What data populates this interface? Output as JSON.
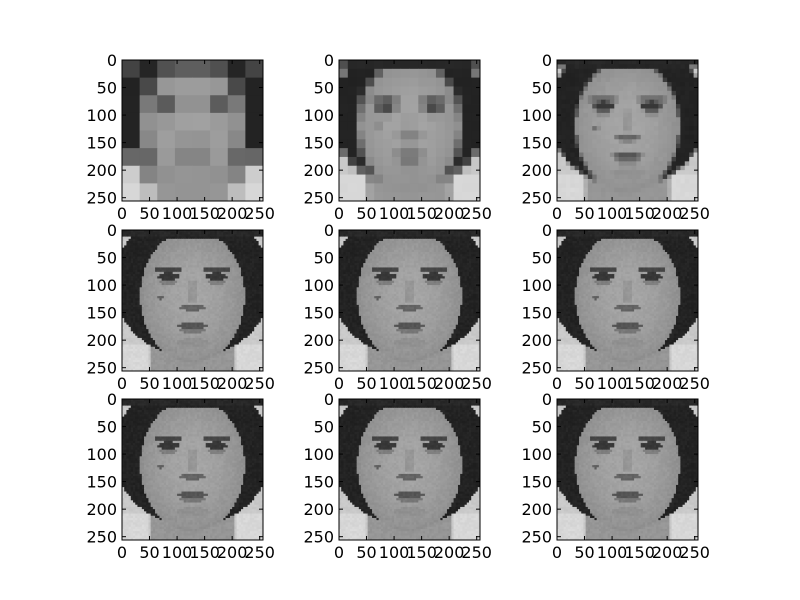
{
  "chart_data": {
    "type": "image-grid",
    "rows": 3,
    "cols": 3,
    "panel_count": 9,
    "image": "grayscale-face",
    "pixelation_levels": [
      32,
      16,
      8,
      4,
      3,
      2,
      1,
      1,
      1
    ],
    "x_axis": {
      "range": [
        0,
        256
      ],
      "ticks": [
        0,
        50,
        100,
        150,
        200,
        250
      ],
      "tick_labels": [
        "0",
        "50",
        "100",
        "150",
        "200",
        "250"
      ]
    },
    "y_axis": {
      "range": [
        0,
        256
      ],
      "inverted": true,
      "ticks": [
        0,
        50,
        100,
        150,
        200,
        250
      ],
      "tick_labels": [
        "0",
        "50",
        "100",
        "150",
        "200",
        "250"
      ]
    },
    "grid": false,
    "title": "",
    "xlabel": "",
    "ylabel": ""
  }
}
